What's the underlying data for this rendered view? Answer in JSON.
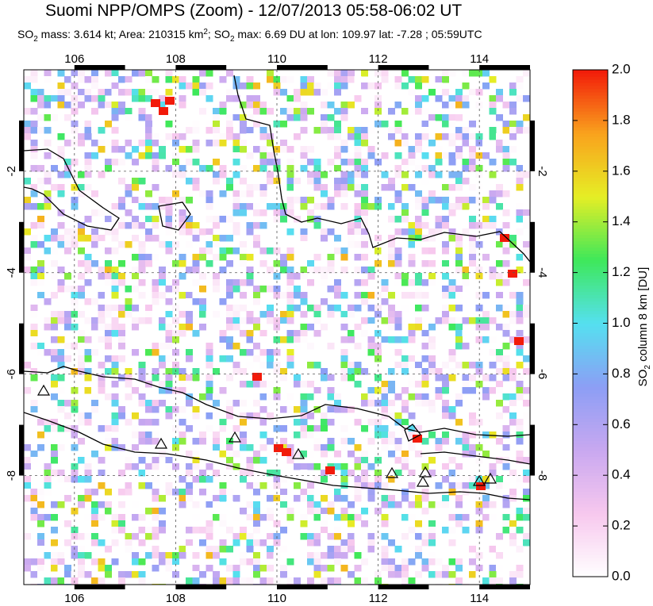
{
  "chart_data": {
    "type": "map",
    "title": "Suomi NPP/OMPS (Zoom) - 12/07/2013 05:58-06:02 UT",
    "subtitle": [
      "SO",
      "2",
      " mass: 3.614 kt; Area: 210315 km",
      "2",
      "; SO",
      "2",
      " max: 6.69 DU at lon: 109.97 lat: -7.28 ; 05:59UTC"
    ],
    "xlim": [
      105,
      115
    ],
    "xticks": [
      106,
      108,
      110,
      112,
      114
    ],
    "ylim": [
      -10.15,
      0
    ],
    "yticks": [
      -2,
      -4,
      -6,
      -8
    ],
    "colorbar": {
      "label": [
        "SO",
        "2",
        " column 8 km [DU]"
      ],
      "lim": [
        0,
        2
      ],
      "ticks": [
        {
          "value": 0,
          "label": "0.0"
        },
        0.2,
        0.4,
        0.6,
        0.8,
        {
          "value": 1,
          "label": "1.0"
        },
        1.2,
        1.4,
        1.6,
        1.8,
        {
          "value": 2,
          "label": "2.0"
        }
      ],
      "colors": [
        "#ffffff",
        "#f7c8ee",
        "#c9a8f0",
        "#8c9ef5",
        "#55e0f0",
        "#3ee85a",
        "#e6ee25",
        "#f9a21d",
        "#f21a0a"
      ]
    }
  }
}
